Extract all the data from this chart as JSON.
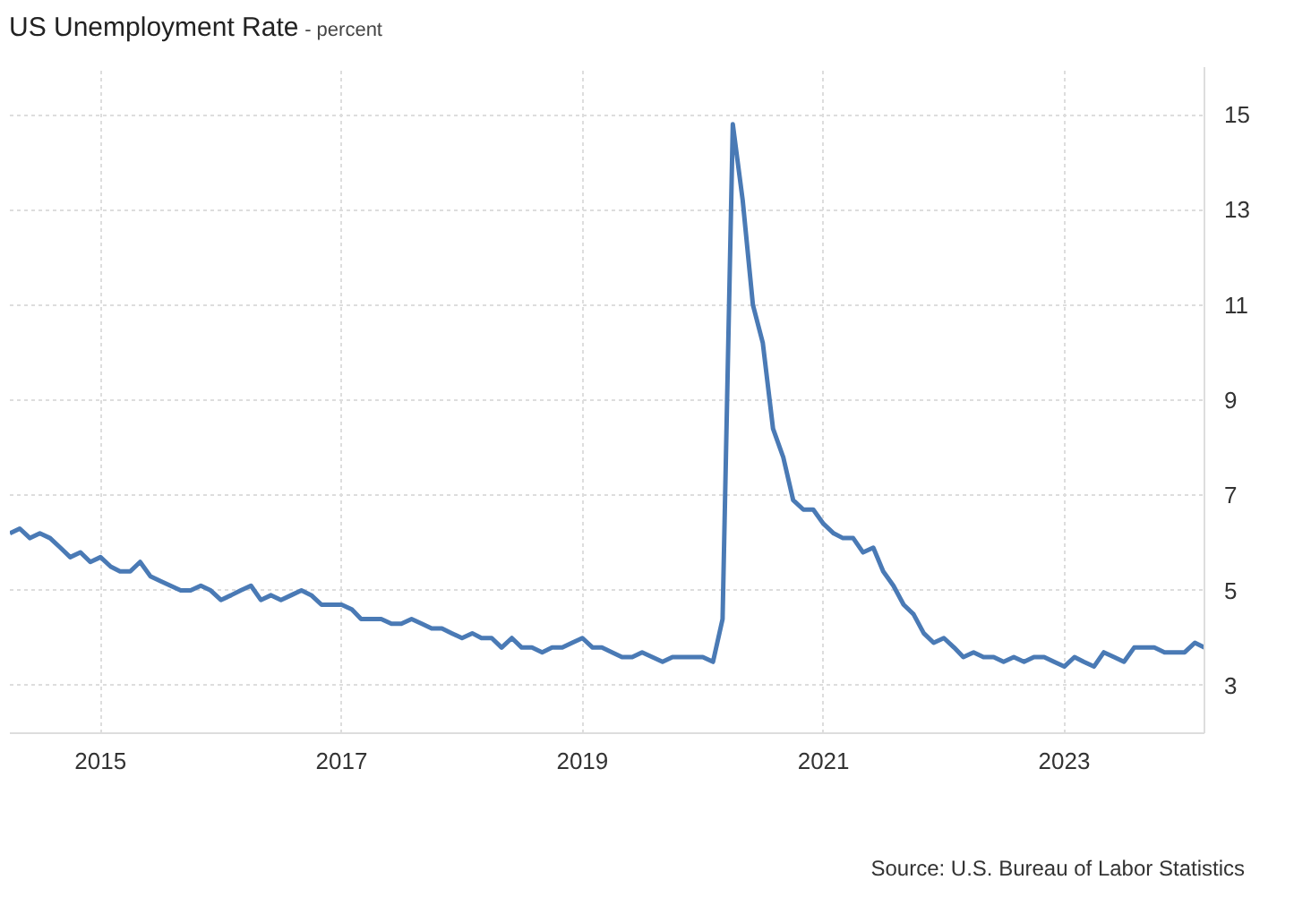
{
  "chart_data": {
    "type": "line",
    "title": "US Unemployment Rate",
    "subtitle": "- percent",
    "x": [
      "2014-04",
      "2014-05",
      "2014-06",
      "2014-07",
      "2014-08",
      "2014-09",
      "2014-10",
      "2014-11",
      "2014-12",
      "2015-01",
      "2015-02",
      "2015-03",
      "2015-04",
      "2015-05",
      "2015-06",
      "2015-07",
      "2015-08",
      "2015-09",
      "2015-10",
      "2015-11",
      "2015-12",
      "2016-01",
      "2016-02",
      "2016-03",
      "2016-04",
      "2016-05",
      "2016-06",
      "2016-07",
      "2016-08",
      "2016-09",
      "2016-10",
      "2016-11",
      "2016-12",
      "2017-01",
      "2017-02",
      "2017-03",
      "2017-04",
      "2017-05",
      "2017-06",
      "2017-07",
      "2017-08",
      "2017-09",
      "2017-10",
      "2017-11",
      "2017-12",
      "2018-01",
      "2018-02",
      "2018-03",
      "2018-04",
      "2018-05",
      "2018-06",
      "2018-07",
      "2018-08",
      "2018-09",
      "2018-10",
      "2018-11",
      "2018-12",
      "2019-01",
      "2019-02",
      "2019-03",
      "2019-04",
      "2019-05",
      "2019-06",
      "2019-07",
      "2019-08",
      "2019-09",
      "2019-10",
      "2019-11",
      "2019-12",
      "2020-01",
      "2020-02",
      "2020-03",
      "2020-04",
      "2020-05",
      "2020-06",
      "2020-07",
      "2020-08",
      "2020-09",
      "2020-10",
      "2020-11",
      "2020-12",
      "2021-01",
      "2021-02",
      "2021-03",
      "2021-04",
      "2021-05",
      "2021-06",
      "2021-07",
      "2021-08",
      "2021-09",
      "2021-10",
      "2021-11",
      "2021-12",
      "2022-01",
      "2022-02",
      "2022-03",
      "2022-04",
      "2022-05",
      "2022-06",
      "2022-07",
      "2022-08",
      "2022-09",
      "2022-10",
      "2022-11",
      "2022-12",
      "2023-01",
      "2023-02",
      "2023-03",
      "2023-04",
      "2023-05",
      "2023-06",
      "2023-07",
      "2023-08",
      "2023-09",
      "2023-10",
      "2023-11",
      "2023-12",
      "2024-01",
      "2024-02",
      "2024-03"
    ],
    "series": [
      {
        "color": "#4a7ab5",
        "values": [
          6.2,
          6.3,
          6.1,
          6.2,
          6.1,
          5.9,
          5.7,
          5.8,
          5.6,
          5.7,
          5.5,
          5.4,
          5.4,
          5.6,
          5.3,
          5.2,
          5.1,
          5.0,
          5.0,
          5.1,
          5.0,
          4.8,
          4.9,
          5.0,
          5.1,
          4.8,
          4.9,
          4.8,
          4.9,
          5.0,
          4.9,
          4.7,
          4.7,
          4.7,
          4.6,
          4.4,
          4.4,
          4.4,
          4.3,
          4.3,
          4.4,
          4.3,
          4.2,
          4.2,
          4.1,
          4.0,
          4.1,
          4.0,
          4.0,
          3.8,
          4.0,
          3.8,
          3.8,
          3.7,
          3.8,
          3.8,
          3.9,
          4.0,
          3.8,
          3.8,
          3.7,
          3.6,
          3.6,
          3.7,
          3.6,
          3.5,
          3.6,
          3.6,
          3.6,
          3.6,
          3.5,
          4.4,
          14.8,
          13.2,
          11.0,
          10.2,
          8.4,
          7.8,
          6.9,
          6.7,
          6.7,
          6.4,
          6.2,
          6.1,
          6.1,
          5.8,
          5.9,
          5.4,
          5.1,
          4.7,
          4.5,
          4.1,
          3.9,
          4.0,
          3.8,
          3.6,
          3.7,
          3.6,
          3.6,
          3.5,
          3.6,
          3.5,
          3.6,
          3.6,
          3.5,
          3.4,
          3.6,
          3.5,
          3.4,
          3.7,
          3.6,
          3.5,
          3.8,
          3.8,
          3.8,
          3.7,
          3.7,
          3.7,
          3.9,
          3.8
        ]
      }
    ],
    "xlim": [
      "2014-04",
      "2024-03"
    ],
    "xticks": [
      "2015",
      "2017",
      "2019",
      "2021",
      "2023"
    ],
    "ylim": [
      2,
      16
    ],
    "yticks": [
      3,
      5,
      7,
      9,
      11,
      13,
      15
    ],
    "grid": true,
    "annotations": [
      "Source: U.S. Bureau of Labor Statistics"
    ]
  }
}
